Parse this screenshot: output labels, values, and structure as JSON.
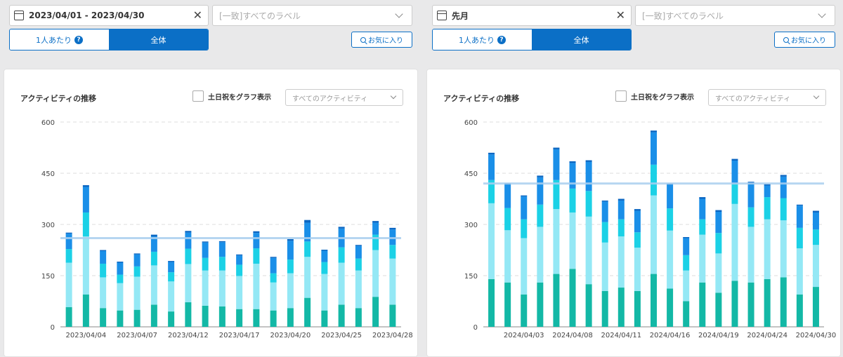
{
  "panels": [
    {
      "date_range": "2023/04/01 - 2023/04/30",
      "label_filter": "[一致]すべてのラベル",
      "mode_per_person": "1人あたり",
      "mode_all": "全体",
      "help_glyph": "?",
      "favorite_label": "お気に入り",
      "chart_title": "アクティビティの推移",
      "weekend_toggle_label": "土日祝をグラフ表示",
      "activity_filter": "すべてのアクティビティ",
      "chart_data": {
        "type": "bar",
        "stacked": true,
        "ylim": [
          0,
          600
        ],
        "yticks": [
          0,
          150,
          300,
          450,
          600
        ],
        "grid": true,
        "average_line": 260,
        "colors": [
          "#13b8a6",
          "#94e8f5",
          "#1bd1e6",
          "#1a8fe8",
          "#0a66c2"
        ],
        "x": [
          "2023/04/03",
          "2023/04/04",
          "2023/04/05",
          "2023/04/06",
          "2023/04/07",
          "2023/04/10",
          "2023/04/11",
          "2023/04/12",
          "2023/04/13",
          "2023/04/14",
          "2023/04/17",
          "2023/04/18",
          "2023/04/19",
          "2023/04/20",
          "2023/04/21",
          "2023/04/24",
          "2023/04/25",
          "2023/04/26",
          "2023/04/27",
          "2023/04/28"
        ],
        "xtick_labels": [
          {
            "x": "2023/04/04",
            "label": "2023/04/04"
          },
          {
            "x": "2023/04/07",
            "label": "2023/04/07"
          },
          {
            "x": "2023/04/12",
            "label": "2023/04/12"
          },
          {
            "x": "2023/04/17",
            "label": "2023/04/17"
          },
          {
            "x": "2023/04/20",
            "label": "2023/04/20"
          },
          {
            "x": "2023/04/25",
            "label": "2023/04/25"
          },
          {
            "x": "2023/04/28",
            "label": "2023/04/28"
          }
        ],
        "series": [
          {
            "values": [
              58,
              95,
              55,
              48,
              50,
              65,
              45,
              72,
              62,
              60,
              52,
              52,
              48,
              55,
              85,
              48,
              65,
              55,
              88,
              65
            ]
          },
          {
            "values": [
              130,
              170,
              90,
              80,
              97,
              115,
              88,
              112,
              103,
              105,
              97,
              133,
              82,
              102,
              120,
              107,
              123,
              110,
              137,
              135
            ]
          },
          {
            "values": [
              40,
              70,
              40,
              25,
              30,
              40,
              27,
              45,
              37,
              40,
              33,
              45,
              27,
              40,
              45,
              35,
              45,
              35,
              45,
              40
            ]
          },
          {
            "values": [
              45,
              75,
              37,
              35,
              35,
              45,
              30,
              47,
              45,
              43,
              27,
              45,
              45,
              55,
              55,
              33,
              55,
              37,
              35,
              45
            ]
          },
          {
            "values": [
              3,
              5,
              3,
              3,
              3,
              5,
              3,
              5,
              3,
              3,
              3,
              5,
              3,
              5,
              8,
              3,
              5,
              3,
              5,
              5
            ]
          }
        ]
      }
    },
    {
      "date_range": "先月",
      "label_filter": "[一致]すべてのラベル",
      "mode_per_person": "1人あたり",
      "mode_all": "全体",
      "help_glyph": "?",
      "favorite_label": "お気に入り",
      "chart_title": "アクティビティの推移",
      "weekend_toggle_label": "土日祝をグラフ表示",
      "activity_filter": "すべてのアクティビティ",
      "chart_data": {
        "type": "bar",
        "stacked": true,
        "ylim": [
          0,
          600
        ],
        "yticks": [
          0,
          150,
          300,
          450,
          600
        ],
        "grid": true,
        "average_line": 420,
        "colors": [
          "#13b8a6",
          "#94e8f5",
          "#1bd1e6",
          "#1a8fe8",
          "#0a66c2"
        ],
        "x": [
          "2024/04/01",
          "2024/04/02",
          "2024/04/03",
          "2024/04/04",
          "2024/04/05",
          "2024/04/08",
          "2024/04/09",
          "2024/04/10",
          "2024/04/11",
          "2024/04/12",
          "2024/04/15",
          "2024/04/16",
          "2024/04/17",
          "2024/04/18",
          "2024/04/19",
          "2024/04/22",
          "2024/04/23",
          "2024/04/24",
          "2024/04/25",
          "2024/04/26",
          "2024/04/30"
        ],
        "xtick_labels": [
          {
            "x": "2024/04/03",
            "label": "2024/04/03"
          },
          {
            "x": "2024/04/08",
            "label": "2024/04/08"
          },
          {
            "x": "2024/04/11",
            "label": "2024/04/11"
          },
          {
            "x": "2024/04/16",
            "label": "2024/04/16"
          },
          {
            "x": "2024/04/19",
            "label": "2024/04/19"
          },
          {
            "x": "2024/04/24",
            "label": "2024/04/24"
          },
          {
            "x": "2024/04/30",
            "label": "2024/04/30"
          }
        ],
        "series": [
          {
            "values": [
              140,
              130,
              95,
              130,
              155,
              170,
              125,
              105,
              115,
              105,
              155,
              112,
              75,
              130,
              100,
              135,
              130,
              140,
              145,
              95,
              117
            ]
          },
          {
            "values": [
              222,
              153,
              165,
              163,
              190,
              165,
              198,
              142,
              150,
              127,
              230,
              170,
              90,
              140,
              115,
              225,
              163,
              175,
              167,
              135,
              123
            ]
          },
          {
            "values": [
              68,
              65,
              55,
              65,
              85,
              70,
              75,
              60,
              50,
              45,
              90,
              65,
              45,
              45,
              60,
              60,
              57,
              65,
              65,
              60,
              45
            ]
          },
          {
            "values": [
              75,
              70,
              67,
              80,
              90,
              75,
              85,
              60,
              55,
              63,
              95,
              70,
              50,
              60,
              62,
              67,
              70,
              34,
              63,
              65,
              50
            ]
          },
          {
            "values": [
              5,
              3,
              3,
              5,
              5,
              5,
              5,
              3,
              5,
              5,
              5,
              3,
              3,
              5,
              5,
              5,
              5,
              5,
              5,
              3,
              5
            ]
          }
        ]
      }
    }
  ]
}
